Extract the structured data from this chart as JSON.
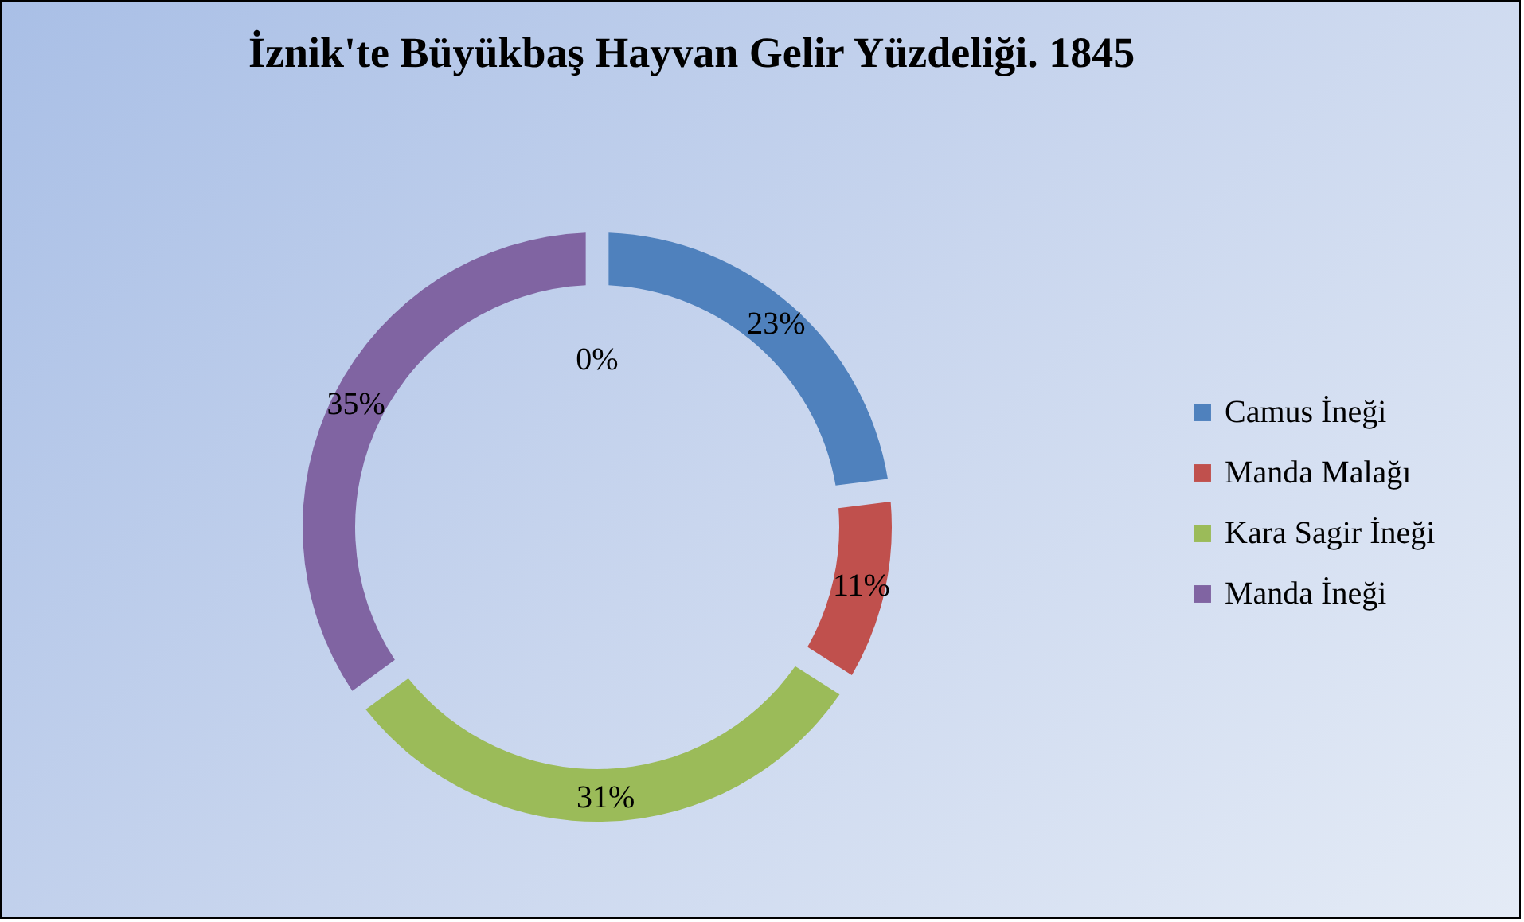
{
  "chart_data": {
    "type": "donut",
    "title": "İznik'te Büyükbaş Hayvan Gelir Yüzdeliği. 1845",
    "categories": [
      "Camus İneği",
      "Manda Malağı",
      "Kara Sagir İneği",
      "Manda İneği"
    ],
    "values": [
      23,
      11,
      31,
      35
    ],
    "colors": [
      "#4f81bd",
      "#c0504d",
      "#9bbb59",
      "#8064a2"
    ],
    "value_labels": [
      "23%",
      "11%",
      "31%",
      "35%"
    ],
    "annotations": [
      "0%"
    ],
    "legend": "right"
  }
}
